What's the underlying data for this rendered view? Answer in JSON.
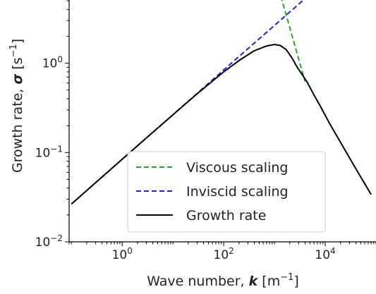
{
  "chart_data": {
    "type": "line",
    "title": "",
    "xlabel": {
      "base": "Wave number, ",
      "symbol": "k",
      "unit_open": " [m",
      "unit_exp": "−1",
      "unit_close": "]"
    },
    "ylabel": {
      "base": "Growth rate, ",
      "symbol": "σ",
      "unit_open": " [s",
      "unit_exp": "−1",
      "unit_close": "]"
    },
    "x_scale": "log",
    "y_scale": "log",
    "xlim": [
      0.09,
      100000
    ],
    "ylim": [
      0.01,
      5.1
    ],
    "x_ticks": [
      {
        "value": 1,
        "base": "10",
        "exp": "0"
      },
      {
        "value": 100,
        "base": "10",
        "exp": "2"
      },
      {
        "value": 10000,
        "base": "10",
        "exp": "4"
      }
    ],
    "y_ticks": [
      {
        "value": 0.01,
        "base": "10",
        "exp": "−2"
      },
      {
        "value": 0.1,
        "base": "10",
        "exp": "−1"
      },
      {
        "value": 1,
        "base": "10",
        "exp": "0"
      }
    ],
    "grid": false,
    "legend_position": "lower-center",
    "series": [
      {
        "name": "Viscous scaling",
        "color": "#2ca02c",
        "style": "dashed",
        "x": [
          1000,
          1500,
          2000,
          2500,
          3000,
          3500,
          4000
        ],
        "y": [
          10.0,
          4.44,
          2.5,
          1.6,
          1.11,
          0.82,
          0.625
        ]
      },
      {
        "name": "Inviscid scaling",
        "color": "#1f1fdd",
        "style": "dashed",
        "x": [
          0.1,
          1,
          10,
          100,
          1000,
          2000,
          5000
        ],
        "y": [
          0.0265,
          0.084,
          0.265,
          0.84,
          2.65,
          3.75,
          5.9
        ]
      },
      {
        "name": "Growth rate",
        "color": "#000000",
        "style": "solid",
        "x": [
          0.1,
          0.3,
          1,
          3,
          10,
          30,
          100,
          200,
          400,
          700,
          1000,
          1300,
          1700,
          2200,
          2800,
          3500,
          4500,
          6000,
          8000,
          12000,
          20000,
          40000,
          80000
        ],
        "y": [
          0.0265,
          0.046,
          0.084,
          0.146,
          0.265,
          0.455,
          0.8,
          1.07,
          1.38,
          1.56,
          1.62,
          1.58,
          1.42,
          1.15,
          0.9,
          0.75,
          0.6,
          0.44,
          0.33,
          0.215,
          0.13,
          0.066,
          0.034
        ]
      }
    ]
  }
}
